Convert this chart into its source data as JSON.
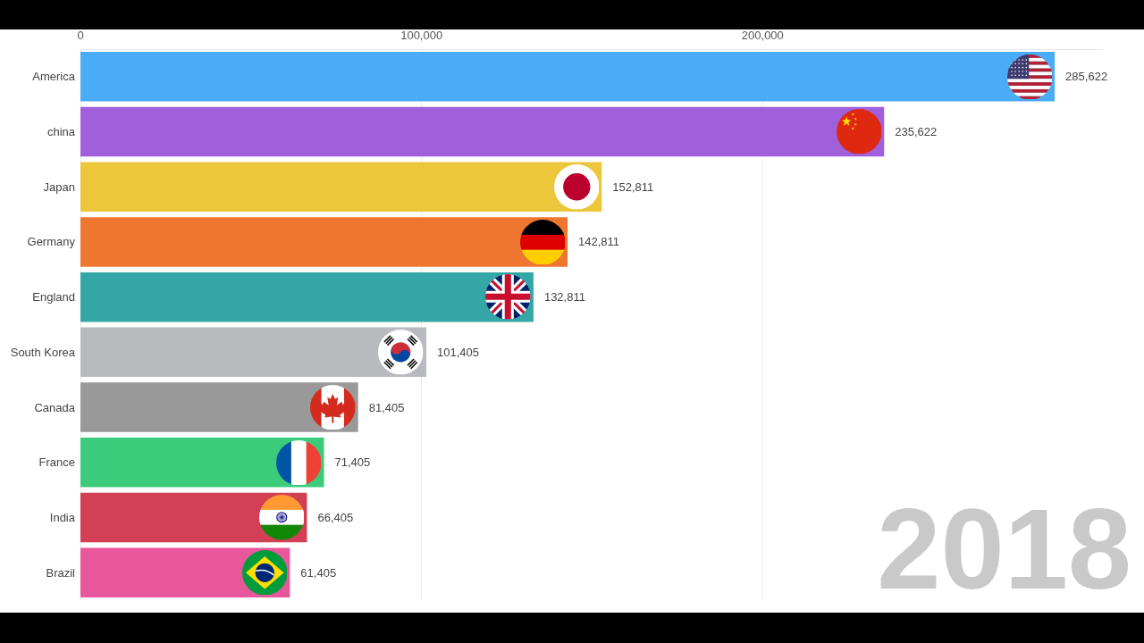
{
  "chart_data": {
    "type": "bar",
    "orientation": "horizontal",
    "categories": [
      "America",
      "china",
      "Japan",
      "Germany",
      "England",
      "South Korea",
      "Canada",
      "France",
      "India",
      "Brazil"
    ],
    "values": [
      285622,
      235622,
      152811,
      142811,
      132811,
      101405,
      81405,
      71405,
      66405,
      61405
    ],
    "colors": [
      "#4aabf7",
      "#a060db",
      "#ecc63b",
      "#ee762e",
      "#34a6a6",
      "#b8babd",
      "#999999",
      "#3ccb7b",
      "#d33f55",
      "#e8579b"
    ],
    "value_labels": [
      "285,622",
      "235,622",
      "152,811",
      "142,811",
      "132,811",
      "101,405",
      "81,405",
      "71,405",
      "66,405",
      "61,405"
    ],
    "xlim": [
      0,
      300000
    ],
    "xticks": [
      0,
      {
        "value": 100000,
        "label": "100,000"
      },
      {
        "value": 200000,
        "label": "200,000"
      }
    ],
    "grid": "x",
    "annotations": [
      "2018"
    ]
  }
}
